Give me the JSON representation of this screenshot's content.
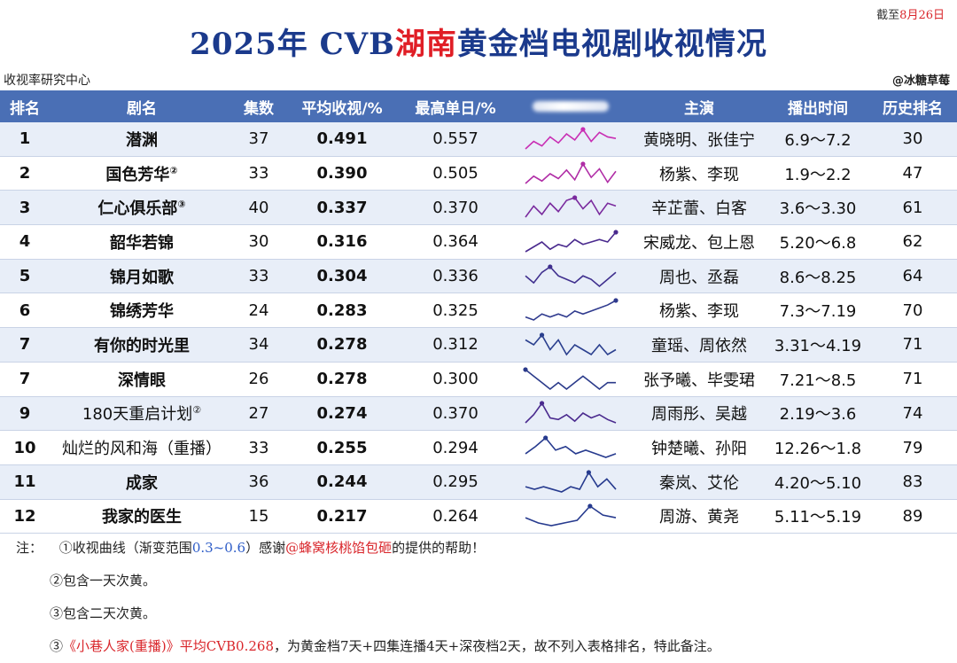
{
  "header": {
    "date_prefix": "截至",
    "date_value": "8月26日",
    "title_pre": "2025年 CVB",
    "title_red": "湖南",
    "title_post": "黄金档电视剧收视情况",
    "source": "收视率研究中心",
    "watermark": "@冰糖草莓"
  },
  "columns": [
    "排名",
    "剧名",
    "集数",
    "平均收视/%",
    "最高单日/%",
    "",
    "主演",
    "播出时间",
    "历史排名"
  ],
  "rows": [
    {
      "rank": "1",
      "name": "潜渊",
      "sup": "",
      "episodes": "37",
      "avg": "0.491",
      "peak": "0.557",
      "cast": "黄晓明、张佳宁",
      "airtime": "6.9～7.2",
      "history": "30",
      "curve": [
        0.42,
        0.47,
        0.44,
        0.5,
        0.46,
        0.52,
        0.48,
        0.55,
        0.47,
        0.53,
        0.5,
        0.49
      ],
      "color": "#c92fb4"
    },
    {
      "rank": "2",
      "name": "国色芳华",
      "sup": "②",
      "episodes": "33",
      "avg": "0.390",
      "peak": "0.505",
      "cast": "杨紫、李现",
      "airtime": "1.9～2.2",
      "history": "47",
      "curve": [
        0.34,
        0.4,
        0.36,
        0.42,
        0.38,
        0.45,
        0.37,
        0.5,
        0.39,
        0.46,
        0.35,
        0.44
      ],
      "color": "#b02da6"
    },
    {
      "rank": "3",
      "name": "仁心俱乐部",
      "sup": "③",
      "episodes": "40",
      "avg": "0.337",
      "peak": "0.370",
      "cast": "辛芷蕾、白客",
      "airtime": "3.6～3.30",
      "history": "61",
      "curve": [
        0.3,
        0.34,
        0.31,
        0.35,
        0.32,
        0.36,
        0.37,
        0.33,
        0.36,
        0.31,
        0.35,
        0.34
      ],
      "color": "#7a2a9e"
    },
    {
      "rank": "4",
      "name": "韶华若锦",
      "sup": "",
      "episodes": "30",
      "avg": "0.316",
      "peak": "0.364",
      "cast": "宋威龙、包上恩",
      "airtime": "5.20～6.8",
      "history": "62",
      "curve": [
        0.28,
        0.3,
        0.32,
        0.29,
        0.31,
        0.3,
        0.33,
        0.31,
        0.32,
        0.33,
        0.32,
        0.36
      ],
      "color": "#4a2a8e"
    },
    {
      "rank": "5",
      "name": "锦月如歌",
      "sup": "",
      "episodes": "33",
      "avg": "0.304",
      "peak": "0.336",
      "cast": "周也、丞磊",
      "airtime": "8.6～8.25",
      "history": "64",
      "curve": [
        0.31,
        0.29,
        0.32,
        0.336,
        0.31,
        0.3,
        0.29,
        0.31,
        0.3,
        0.28,
        0.3,
        0.32
      ],
      "color": "#3f2f8e"
    },
    {
      "rank": "6",
      "name": "锦绣芳华",
      "sup": "",
      "episodes": "24",
      "avg": "0.283",
      "peak": "0.325",
      "cast": "杨紫、李现",
      "airtime": "7.3～7.19",
      "history": "70",
      "curve": [
        0.27,
        0.26,
        0.28,
        0.27,
        0.28,
        0.27,
        0.29,
        0.28,
        0.29,
        0.3,
        0.31,
        0.325
      ],
      "color": "#2f3a8e"
    },
    {
      "rank": "7",
      "name": "有你的时光里",
      "sup": "",
      "episodes": "34",
      "avg": "0.278",
      "peak": "0.312",
      "cast": "童瑶、周依然",
      "airtime": "3.31～4.19",
      "history": "71",
      "curve": [
        0.3,
        0.29,
        0.31,
        0.28,
        0.3,
        0.27,
        0.29,
        0.28,
        0.27,
        0.29,
        0.27,
        0.28
      ],
      "color": "#2a3f8e"
    },
    {
      "rank": "7",
      "name": "深情眼",
      "sup": "",
      "episodes": "26",
      "avg": "0.278",
      "peak": "0.300",
      "cast": "张予曦、毕雯珺",
      "airtime": "7.21～8.5",
      "history": "71",
      "curve": [
        0.3,
        0.29,
        0.28,
        0.27,
        0.28,
        0.27,
        0.28,
        0.29,
        0.28,
        0.27,
        0.28,
        0.28
      ],
      "color": "#2a3a8a"
    },
    {
      "rank": "9",
      "name": "180天重启计划",
      "sup": "②",
      "episodes": "27",
      "avg": "0.274",
      "peak": "0.370",
      "cast": "周雨彤、吴越",
      "airtime": "2.19～3.6",
      "history": "74",
      "curve": [
        0.25,
        0.3,
        0.37,
        0.28,
        0.27,
        0.3,
        0.26,
        0.31,
        0.28,
        0.3,
        0.27,
        0.25
      ],
      "color": "#4a2a8e"
    },
    {
      "rank": "10",
      "name": "灿烂的风和海（重播）",
      "sup": "",
      "episodes": "33",
      "avg": "0.255",
      "peak": "0.294",
      "cast": "钟楚曦、孙阳",
      "airtime": "12.26～1.8",
      "history": "79",
      "curve": [
        0.25,
        0.27,
        0.294,
        0.26,
        0.27,
        0.25,
        0.26,
        0.25,
        0.24,
        0.25
      ],
      "color": "#263a8e"
    },
    {
      "rank": "11",
      "name": "成家",
      "sup": "",
      "episodes": "36",
      "avg": "0.244",
      "peak": "0.295",
      "cast": "秦岚、艾伦",
      "airtime": "4.20～5.10",
      "history": "83",
      "curve": [
        0.24,
        0.23,
        0.24,
        0.23,
        0.22,
        0.24,
        0.23,
        0.295,
        0.24,
        0.27,
        0.23
      ],
      "color": "#263a8e"
    },
    {
      "rank": "12",
      "name": "我家的医生",
      "sup": "",
      "episodes": "15",
      "avg": "0.217",
      "peak": "0.264",
      "cast": "周游、黄尧",
      "airtime": "5.11～5.19",
      "history": "89",
      "curve": [
        0.22,
        0.2,
        0.19,
        0.2,
        0.21,
        0.264,
        0.23,
        0.22
      ],
      "color": "#263a8e"
    }
  ],
  "notes": {
    "label": "注：",
    "n1_pre": "①收视曲线（渐变范围",
    "n1_range": "0.3~0.6",
    "n1_mid": "）感谢",
    "n1_user": "@蜂窝核桃馅包砸",
    "n1_post": "的提供的帮助！",
    "n2": "②包含一天次黄。",
    "n3": "③包含二天次黄。",
    "n4_num": "③",
    "n4_red": "《小巷人家(重播)》平均CVB0.268",
    "n4_post": "，为黄金档7天+四集连播4天+深夜档2天，故不列入表格排名，特此备注。"
  }
}
